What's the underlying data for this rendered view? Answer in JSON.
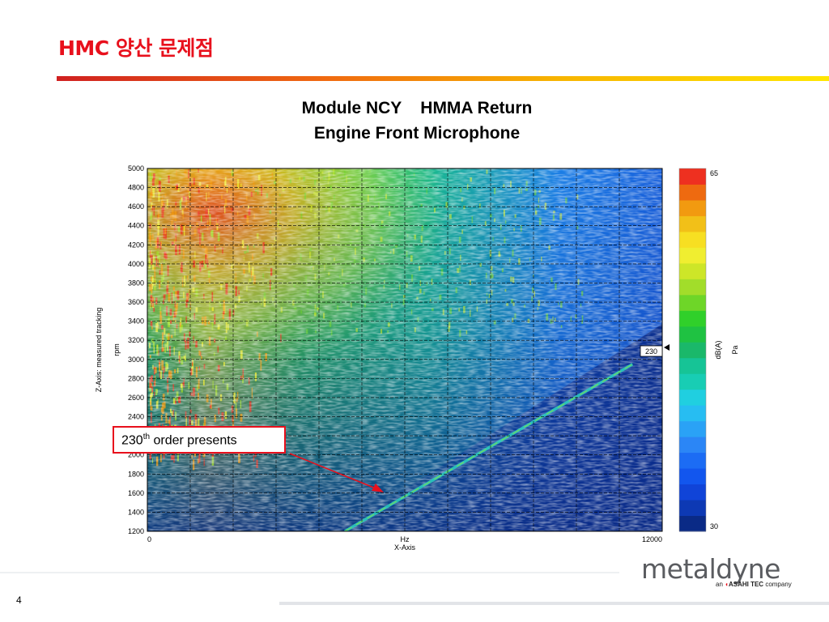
{
  "slide": {
    "title": "HMC 양산 문제점",
    "page_number": "4"
  },
  "chart_data": {
    "type": "heatmap",
    "title": [
      "Module NCY    HMMA Return",
      "Engine Front Microphone"
    ],
    "xlabel": "X-Axis",
    "x_unit": "Hz",
    "xlim": [
      0,
      12000
    ],
    "x_ticks": [
      "0",
      "12000"
    ],
    "ylabel": "Z-Axis: measured tracking",
    "y_unit": "rpm",
    "ylim": [
      1200,
      5000
    ],
    "y_ticks": [
      1200,
      1400,
      1600,
      1800,
      2000,
      2200,
      2400,
      2600,
      2800,
      3000,
      3200,
      3400,
      3600,
      3800,
      4000,
      4200,
      4400,
      4600,
      4800,
      5000
    ],
    "colorbar": {
      "min_label": "30",
      "max_label": "65",
      "unit": "dB(A)",
      "unit2": "Pa",
      "levels": [
        "#0a2a86",
        "#0d39b4",
        "#1044d8",
        "#1256ee",
        "#1c6cf4",
        "#2b86f6",
        "#2aa2f6",
        "#27bdf2",
        "#20cfe0",
        "#18cdb4",
        "#16c496",
        "#1ab86a",
        "#1fc242",
        "#30d02a",
        "#6ed628",
        "#a2dd2a",
        "#cde628",
        "#f0ee30",
        "#f7df22",
        "#f2c018",
        "#f29a10",
        "#ee6a10",
        "#ee3020"
      ]
    },
    "marker_label": "230",
    "grid": true,
    "annotation": {
      "text_main": "230",
      "text_sup": "th",
      "text_rest": " order presents"
    }
  },
  "colors": {
    "title_red": "#e8101c",
    "callout_border": "#e8101c",
    "arrow": "#e8101c"
  },
  "logo": {
    "word": "metaldyne",
    "tag_pre": "an ",
    "tag_brand": "ASAHI TEC",
    "tag_post": " company"
  }
}
